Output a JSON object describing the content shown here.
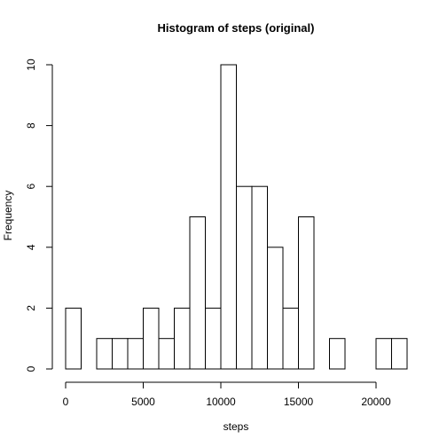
{
  "chart_data": {
    "type": "bar",
    "title": "Histogram of steps (original)",
    "xlabel": "steps",
    "ylabel": "Frequency",
    "bin_width": 1000,
    "bin_start": 0,
    "values": [
      2,
      0,
      1,
      1,
      1,
      2,
      1,
      2,
      5,
      2,
      10,
      6,
      6,
      4,
      2,
      5,
      0,
      1,
      0,
      0,
      1,
      1
    ],
    "xlim": [
      0,
      22000
    ],
    "ylim": [
      0,
      10
    ],
    "xticks": [
      0,
      5000,
      10000,
      15000,
      20000
    ],
    "yticks": [
      0,
      2,
      4,
      6,
      8,
      10
    ],
    "grid": false,
    "colors": {
      "bar_fill": "#ffffff",
      "bar_stroke": "#000000"
    }
  }
}
